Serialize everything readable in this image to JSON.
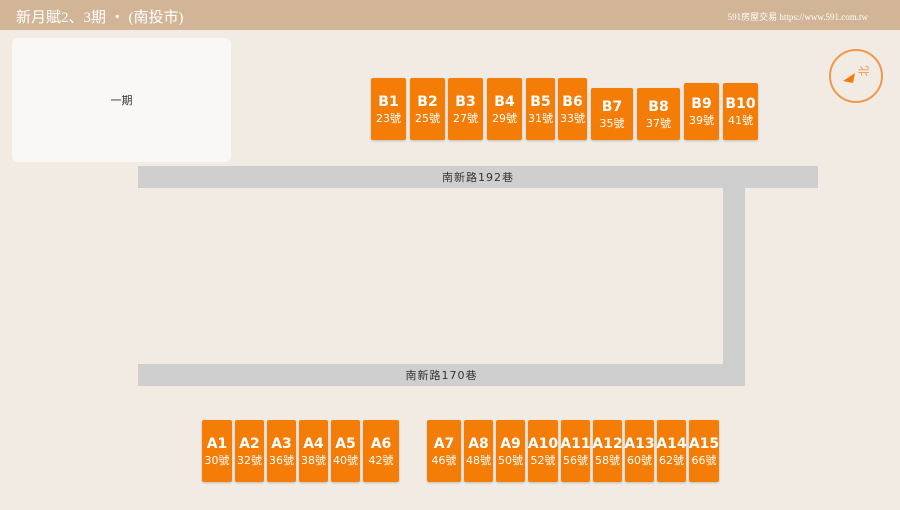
{
  "header": {
    "title": "新月賦2、3期 ‧ (南投市)",
    "site": "591房屋交易 https://www.591.com.tw"
  },
  "phase1_label": "一期",
  "roads": {
    "north": "南新路192巷",
    "south": "南新路170巷"
  },
  "compass": {
    "label": "北",
    "icon": "north-arrow-icon"
  },
  "colors": {
    "lot": "#f47d08",
    "road": "#cfcfcf",
    "header": "#d2b496"
  },
  "b_lots": [
    {
      "id": "B1",
      "no": "23號"
    },
    {
      "id": "B2",
      "no": "25號"
    },
    {
      "id": "B3",
      "no": "27號"
    },
    {
      "id": "B4",
      "no": "29號"
    },
    {
      "id": "B5",
      "no": "31號"
    },
    {
      "id": "B6",
      "no": "33號"
    },
    {
      "id": "B7",
      "no": "35號"
    },
    {
      "id": "B8",
      "no": "37號"
    },
    {
      "id": "B9",
      "no": "39號"
    },
    {
      "id": "B10",
      "no": "41號"
    }
  ],
  "a_lots": [
    {
      "id": "A1",
      "no": "30號"
    },
    {
      "id": "A2",
      "no": "32號"
    },
    {
      "id": "A3",
      "no": "36號"
    },
    {
      "id": "A4",
      "no": "38號"
    },
    {
      "id": "A5",
      "no": "40號"
    },
    {
      "id": "A6",
      "no": "42號"
    },
    {
      "id": "A7",
      "no": "46號"
    },
    {
      "id": "A8",
      "no": "48號"
    },
    {
      "id": "A9",
      "no": "50號"
    },
    {
      "id": "A10",
      "no": "52號"
    },
    {
      "id": "A11",
      "no": "56號"
    },
    {
      "id": "A12",
      "no": "58號"
    },
    {
      "id": "A13",
      "no": "60號"
    },
    {
      "id": "A14",
      "no": "62號"
    },
    {
      "id": "A15",
      "no": "66號"
    }
  ]
}
